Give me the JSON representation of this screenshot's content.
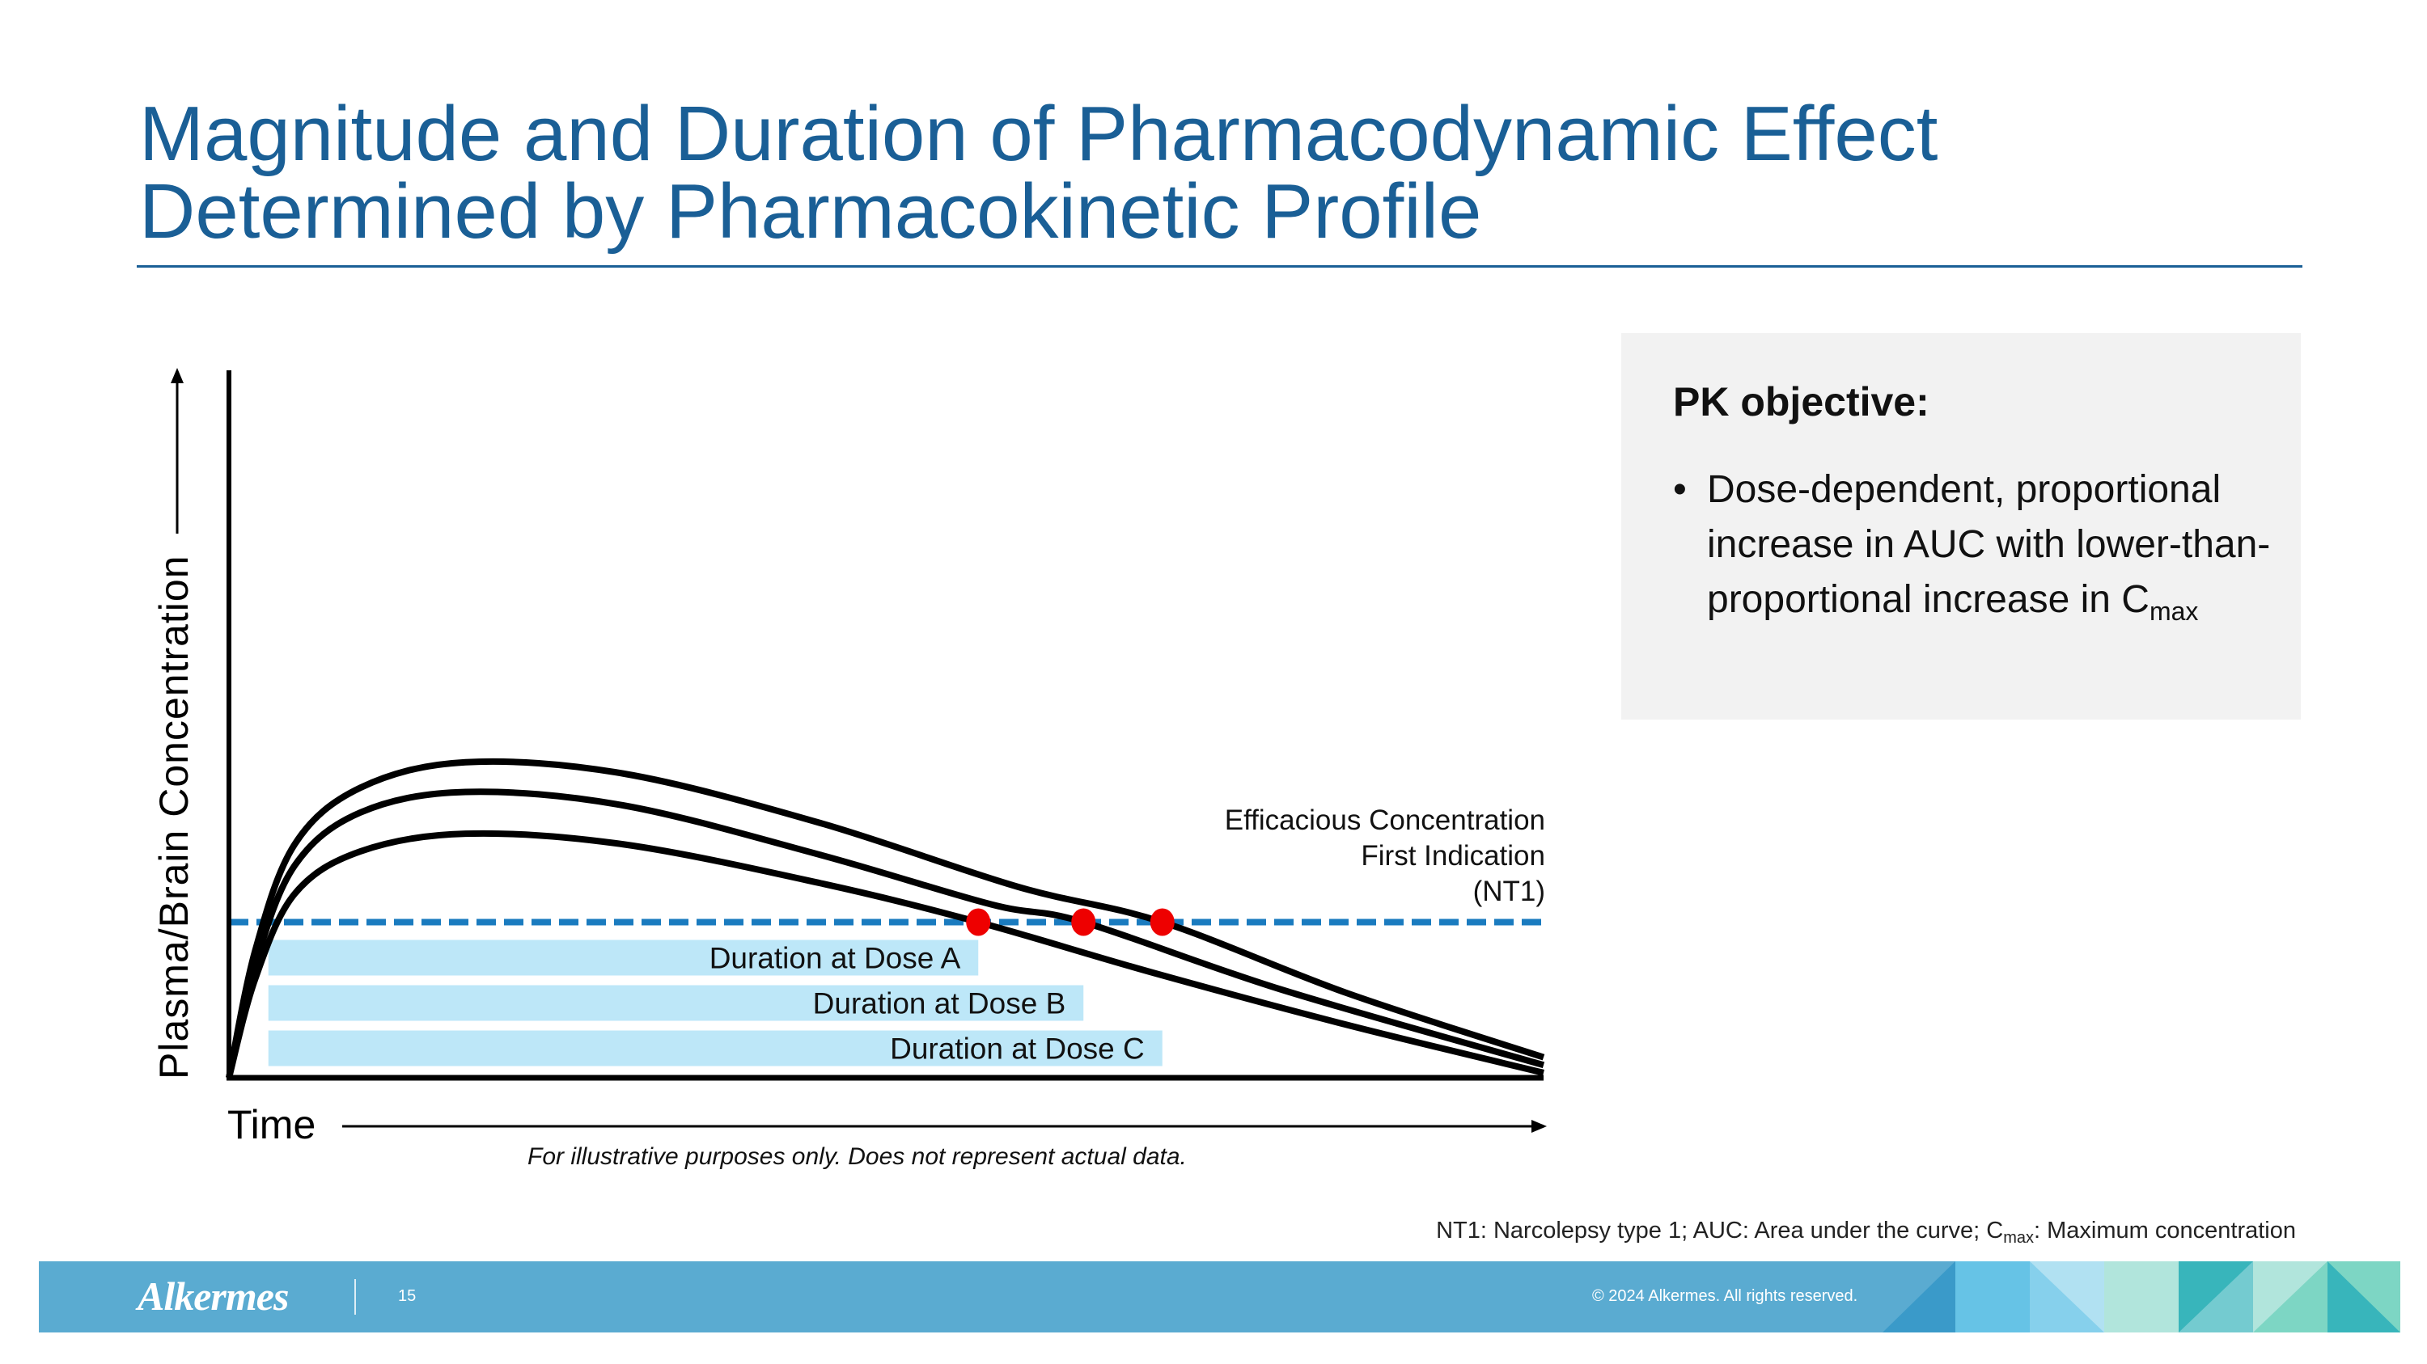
{
  "title": {
    "line1": "Magnitude and Duration of Pharmacodynamic Effect",
    "line2": "Determined by Pharmacokinetic Profile"
  },
  "pk_box": {
    "heading": "PK objective:",
    "bullet": "•",
    "text_main": "Dose-dependent, proportional increase in AUC with lower-than-proportional increase in C",
    "text_sub": "max"
  },
  "chart_data": {
    "type": "line",
    "title": "",
    "xlabel": "Time",
    "ylabel": "Plasma/Brain Concentration",
    "xlim": [
      0,
      100
    ],
    "ylim": [
      0,
      100
    ],
    "grid": false,
    "ticks": false,
    "series": [
      {
        "values": [
          [
            0,
            0
          ],
          [
            2,
            14
          ],
          [
            5,
            26
          ],
          [
            10,
            32
          ],
          [
            18,
            34.5
          ],
          [
            30,
            33
          ],
          [
            45,
            27.5
          ],
          [
            57,
            22
          ],
          [
            70,
            15
          ],
          [
            85,
            7.5
          ],
          [
            100,
            0.7
          ]
        ]
      },
      {
        "values": [
          [
            0,
            0
          ],
          [
            2,
            16
          ],
          [
            5,
            30
          ],
          [
            10,
            37.5
          ],
          [
            18,
            40.4
          ],
          [
            30,
            38.5
          ],
          [
            45,
            31.5
          ],
          [
            58,
            24.5
          ],
          [
            65,
            22
          ],
          [
            80,
            12.5
          ],
          [
            100,
            1.8
          ]
        ]
      },
      {
        "values": [
          [
            0,
            0
          ],
          [
            2,
            18
          ],
          [
            5,
            33
          ],
          [
            10,
            41
          ],
          [
            18,
            44.6
          ],
          [
            30,
            43
          ],
          [
            45,
            36
          ],
          [
            60,
            27
          ],
          [
            71,
            22
          ],
          [
            85,
            12
          ],
          [
            100,
            2.9
          ]
        ]
      }
    ],
    "threshold": {
      "value": 22,
      "label_lines": [
        "Efficacious Concentration",
        "First Indication",
        "(NT1)"
      ],
      "color": "#1a7bbf"
    },
    "crossings": [
      57,
      65,
      71
    ],
    "crossing_color": "#ee0000",
    "duration_bars": [
      {
        "label": "Duration at Dose A",
        "start": 3,
        "end": 57
      },
      {
        "label": "Duration at Dose B",
        "start": 3,
        "end": 65
      },
      {
        "label": "Duration at Dose C",
        "start": 3,
        "end": 71
      }
    ],
    "bar_color": "#bde7f8",
    "note": "For illustrative purposes only. Does not represent actual data."
  },
  "footnote": {
    "part1": "NT1: Narcolepsy type 1; AUC: Area under the curve; C",
    "sub": "max",
    "part2": ": Maximum concentration"
  },
  "footer": {
    "logo": "Alkermes",
    "page_number": "15",
    "copyright": "© 2024 Alkermes. All rights reserved.",
    "color": "#5aabd1"
  }
}
